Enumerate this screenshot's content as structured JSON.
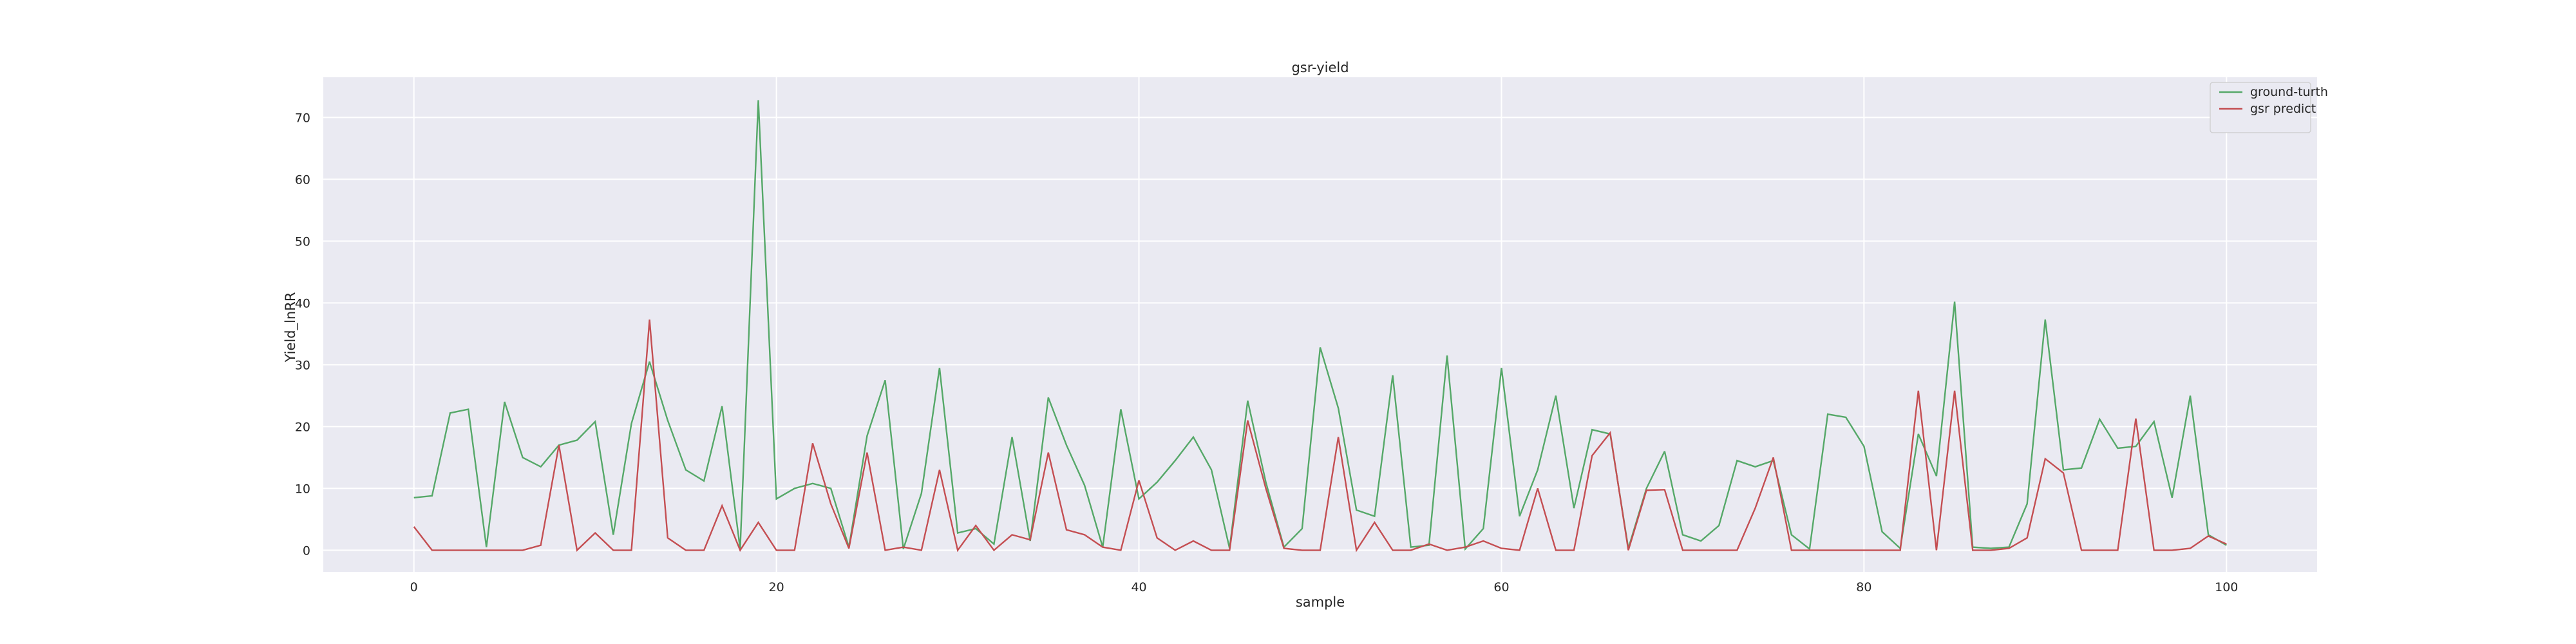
{
  "chart_data": {
    "type": "line",
    "title": "gsr-yield",
    "xlabel": "sample",
    "ylabel": "Yield_lnRR",
    "xlim": [
      -5,
      105
    ],
    "ylim": [
      -3.5,
      76.5
    ],
    "xticks": [
      0,
      20,
      40,
      60,
      80,
      100
    ],
    "yticks": [
      0,
      10,
      20,
      30,
      40,
      50,
      60,
      70
    ],
    "grid": true,
    "legend_position": "top-right",
    "series": [
      {
        "name": "ground-turth",
        "color": "#55a868",
        "values": [
          8.5,
          8.8,
          22.2,
          22.8,
          0.5,
          24.0,
          15.0,
          13.5,
          17.0,
          17.8,
          20.8,
          2.5,
          20.5,
          30.5,
          21.0,
          13.0,
          11.2,
          23.3,
          0.2,
          72.8,
          8.3,
          10.0,
          10.8,
          10.0,
          0.5,
          18.5,
          27.5,
          0.2,
          9.2,
          29.5,
          2.8,
          3.5,
          1.0,
          18.3,
          1.5,
          24.7,
          17.0,
          10.5,
          0.5,
          22.8,
          8.3,
          11.0,
          14.5,
          18.3,
          13.0,
          0.3,
          24.2,
          11.0,
          0.5,
          3.5,
          32.8,
          23.0,
          6.5,
          5.5,
          28.3,
          0.5,
          0.8,
          31.5,
          0.2,
          3.5,
          29.5,
          5.5,
          13.0,
          25.0,
          6.8,
          19.5,
          18.8,
          0.3,
          10.0,
          16.0,
          2.5,
          1.5,
          4.0,
          14.5,
          13.5,
          14.5,
          2.5,
          0.2,
          22.0,
          21.5,
          16.8,
          3.0,
          0.3,
          18.8,
          12.0,
          40.2,
          0.5,
          0.3,
          0.5,
          7.5,
          37.3,
          13.0,
          13.3,
          21.2,
          16.5,
          16.8,
          20.8,
          8.5,
          25.0,
          2.5,
          0.8
        ]
      },
      {
        "name": "gsr predict",
        "color": "#c44e52",
        "values": [
          3.8,
          0.0,
          0.0,
          0.0,
          0.0,
          0.0,
          0.0,
          0.8,
          17.0,
          0.0,
          2.8,
          0.0,
          0.0,
          37.3,
          2.0,
          0.0,
          0.0,
          7.2,
          0.0,
          4.5,
          0.0,
          0.0,
          17.3,
          7.5,
          0.3,
          15.8,
          0.0,
          0.5,
          0.0,
          13.0,
          0.0,
          4.0,
          0.0,
          2.5,
          1.7,
          15.8,
          3.3,
          2.5,
          0.5,
          0.0,
          11.3,
          2.0,
          0.0,
          1.5,
          0.0,
          0.0,
          21.0,
          10.0,
          0.3,
          0.0,
          0.0,
          18.3,
          0.0,
          4.5,
          0.0,
          0.0,
          1.0,
          0.0,
          0.5,
          1.5,
          0.3,
          0.0,
          10.0,
          0.0,
          0.0,
          15.3,
          19.0,
          0.0,
          9.7,
          9.8,
          0.0,
          0.0,
          0.0,
          0.0,
          6.8,
          15.0,
          0.0,
          0.0,
          0.0,
          0.0,
          0.0,
          0.0,
          0.0,
          25.8,
          0.0,
          25.8,
          0.0,
          0.0,
          0.3,
          2.0,
          14.8,
          12.5,
          0.0,
          0.0,
          0.0,
          21.3,
          0.0,
          0.0,
          0.3,
          2.3,
          1.0
        ]
      }
    ]
  }
}
